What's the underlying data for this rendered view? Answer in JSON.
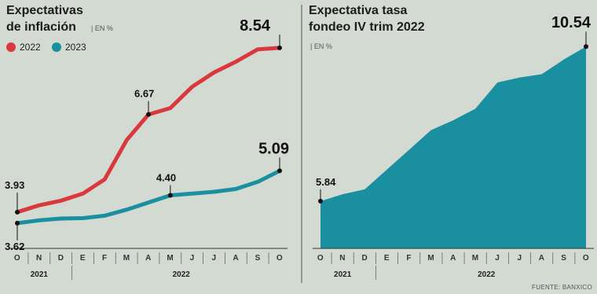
{
  "colors": {
    "red": "#d9383c",
    "teal": "#1a8fa0",
    "background": "#d3dad2",
    "axis": "#333333"
  },
  "chart_data": [
    {
      "type": "line",
      "title_line1": "Expectativas",
      "title_line2": "de inflación",
      "unit": "| EN %",
      "categories": [
        "O",
        "N",
        "D",
        "E",
        "F",
        "M",
        "A",
        "M",
        "J",
        "J",
        "A",
        "S",
        "O"
      ],
      "year_labels": [
        "2021",
        "2022"
      ],
      "ylim": [
        3.0,
        9.0
      ],
      "series": [
        {
          "name": "2022",
          "color": "#d9383c",
          "values": [
            3.93,
            4.12,
            4.25,
            4.45,
            4.85,
            5.95,
            6.67,
            6.85,
            7.45,
            7.85,
            8.15,
            8.5,
            8.54
          ],
          "labels": [
            {
              "index": 0,
              "text": "3.93",
              "big": false
            },
            {
              "index": 6,
              "text": "6.67",
              "big": false
            },
            {
              "index": 12,
              "text": "8.54",
              "big": true
            }
          ]
        },
        {
          "name": "2023",
          "color": "#1a8fa0",
          "values": [
            3.62,
            3.7,
            3.75,
            3.76,
            3.83,
            4.0,
            4.2,
            4.4,
            4.45,
            4.5,
            4.58,
            4.78,
            5.09
          ],
          "labels": [
            {
              "index": 0,
              "text": "3.62",
              "big": false
            },
            {
              "index": 7,
              "text": "4.40",
              "big": false
            },
            {
              "index": 12,
              "text": "5.09",
              "big": true
            }
          ]
        }
      ]
    },
    {
      "type": "area",
      "title_line1": "Expectativa tasa",
      "title_line2": "fondeo IV trim 2022",
      "unit": "| EN %",
      "categories": [
        "O",
        "N",
        "D",
        "E",
        "F",
        "M",
        "A",
        "M",
        "J",
        "J",
        "A",
        "S",
        "O"
      ],
      "year_labels": [
        "2021",
        "2022"
      ],
      "ylim": [
        4.5,
        11.0
      ],
      "series": [
        {
          "color": "#1a8fa0",
          "values": [
            5.84,
            6.05,
            6.2,
            6.8,
            7.4,
            8.0,
            8.3,
            8.65,
            9.45,
            9.6,
            9.7,
            10.15,
            10.54
          ],
          "labels": [
            {
              "index": 0,
              "text": "5.84",
              "big": false
            },
            {
              "index": 12,
              "text": "10.54",
              "big": true
            }
          ]
        }
      ]
    }
  ],
  "source": "FUENTE: BANXICO"
}
